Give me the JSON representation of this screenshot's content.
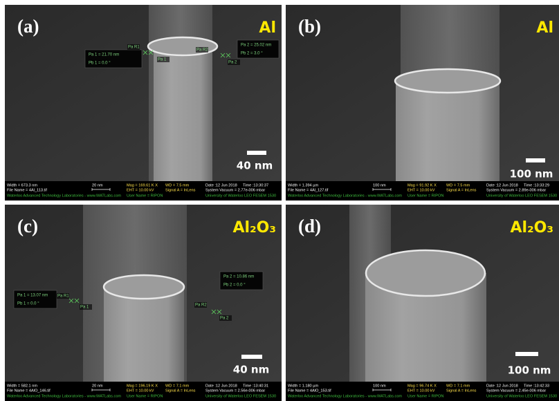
{
  "panels": [
    {
      "label": "(a)",
      "material": "Al",
      "scale_bar": "40 nm",
      "info": {
        "width": "Width = 673.3 nm",
        "bar": "20 nm",
        "mag": "Mag = 169.61 K X",
        "wd": "WD = 7.5 mm",
        "date": "Date :12 Jun 2018",
        "time": "Time :13:30:37",
        "file": "File Name = 4Al_113.tif",
        "eht": "EHT = 10.00 kV",
        "signal": "Signal A = InLens",
        "vacuum": "System Vacuum = 2.77e-006 mbar",
        "lab": "Waterloo Advanced Technology Laboratories - www.WATLabs.com",
        "user": "User Name = RIPON",
        "univ": "University of Waterloo  LEO FESEM 1530"
      },
      "measurements": {
        "box1": [
          "Pa 1 = 21.70 nm",
          "Pb 1 = 0.0 °"
        ],
        "box2": [
          "Pa 2 = 25.02 nm",
          "Pb 2 = 3.0 °"
        ],
        "points": [
          "Pa R1",
          "Pa 1",
          "Pa R2",
          "Pa 2"
        ]
      }
    },
    {
      "label": "(b)",
      "material": "Al",
      "scale_bar": "100 nm",
      "info": {
        "width": "Width = 1.394 µm",
        "bar": "100 nm",
        "mag": "Mag = 91.92 K X",
        "wd": "WD = 7.5 mm",
        "date": "Date :12 Jun 2018",
        "time": "Time :13:33:29",
        "file": "File Name = 4Al_127.tif",
        "eht": "EHT = 10.00 kV",
        "signal": "Signal A = InLens",
        "vacuum": "System Vacuum = 2.89e-006 mbar",
        "lab": "Waterloo Advanced Technology Laboratories - www.WATLabs.com",
        "user": "User Name = RIPON",
        "univ": "University of Waterloo  LEO FESEM 1530"
      }
    },
    {
      "label": "(c)",
      "material": "Al₂O₃",
      "scale_bar": "40 nm",
      "info": {
        "width": "Width = 582.1 nm",
        "bar": "20 nm",
        "mag": "Mag = 196.19 K X",
        "wd": "WD = 7.1 mm",
        "date": "Date :12 Jun 2018",
        "time": "Time :13:40:31",
        "file": "File Name = 4AlO_146.tif",
        "eht": "EHT = 10.00 kV",
        "signal": "Signal A = InLens",
        "vacuum": "System Vacuum = 2.56e-006 mbar",
        "lab": "Waterloo Advanced Technology Laboratories - www.WATLabs.com",
        "user": "User Name = RIPON",
        "univ": "University of Waterloo  LEO FESEM 1530"
      },
      "measurements": {
        "box1": [
          "Pa 1 = 13.07 nm",
          "Pb 1 = 0.0 °"
        ],
        "box2": [
          "Pa 2 = 10.86 nm",
          "Pb 2 = 0.0 °"
        ],
        "points": [
          "Pa R1",
          "Pa 1",
          "Pa R2",
          "Pa 2"
        ]
      }
    },
    {
      "label": "(d)",
      "material": "Al₂O₃",
      "scale_bar": "100 nm",
      "info": {
        "width": "Width = 1.180 µm",
        "bar": "100 nm",
        "mag": "Mag = 96.74 K X",
        "wd": "WD = 7.1 mm",
        "date": "Date :12 Jun 2018",
        "time": "Time :13:42:33",
        "file": "File Name = 4AlO_153.tif",
        "eht": "EHT = 10.00 kV",
        "signal": "Signal A = InLens",
        "vacuum": "System Vacuum = 2.45e-006 mbar",
        "lab": "Waterloo Advanced Technology Laboratories - www.WATLabs.com",
        "user": "User Name = RIPON",
        "univ": "University of Waterloo  LEO FESEM 1530"
      }
    }
  ]
}
